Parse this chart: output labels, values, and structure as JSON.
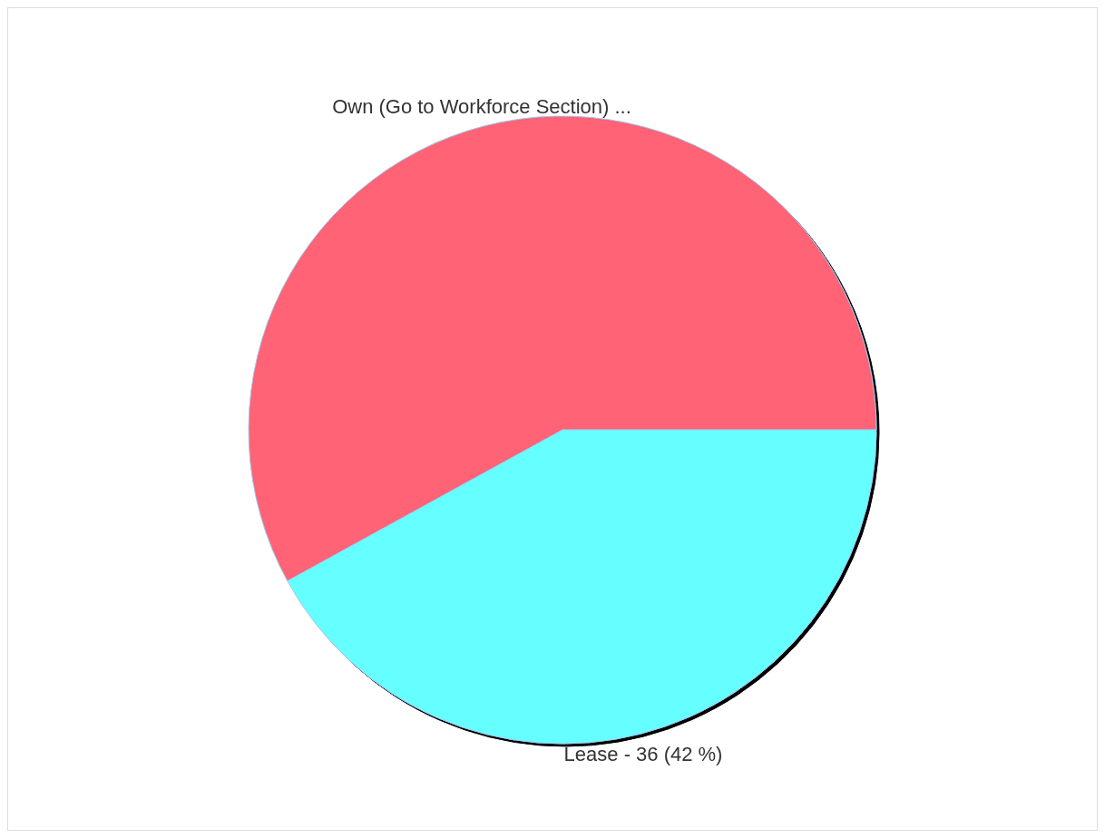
{
  "chart_data": {
    "type": "pie",
    "categories": [
      "Own (Go to Workforce Section) ...",
      "Lease - 36 (42 %)"
    ],
    "values": [
      58,
      42
    ],
    "colors": [
      "#ff6375",
      "#66ffff"
    ]
  }
}
